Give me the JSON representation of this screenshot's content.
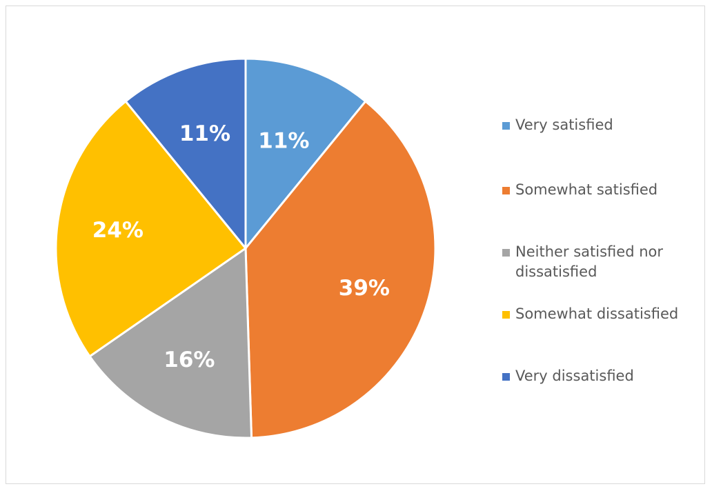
{
  "chart_data": {
    "type": "pie",
    "title": "",
    "categories": [
      "Very satisfied",
      "Somewhat satisfied",
      "Neither satisfied nor dissatisfied",
      "Somewhat dissatisfied",
      "Very dissatisfied"
    ],
    "values": [
      11,
      39,
      16,
      24,
      11
    ],
    "labels": [
      "11%",
      "39%",
      "16%",
      "24%",
      "11%"
    ],
    "colors": [
      "#5B9BD5",
      "#ED7D31",
      "#A5A5A5",
      "#FFC000",
      "#4472C4"
    ],
    "start_angle": "12 o'clock",
    "direction": "clockwise",
    "legend_position": "right",
    "data_labels": "inside"
  }
}
